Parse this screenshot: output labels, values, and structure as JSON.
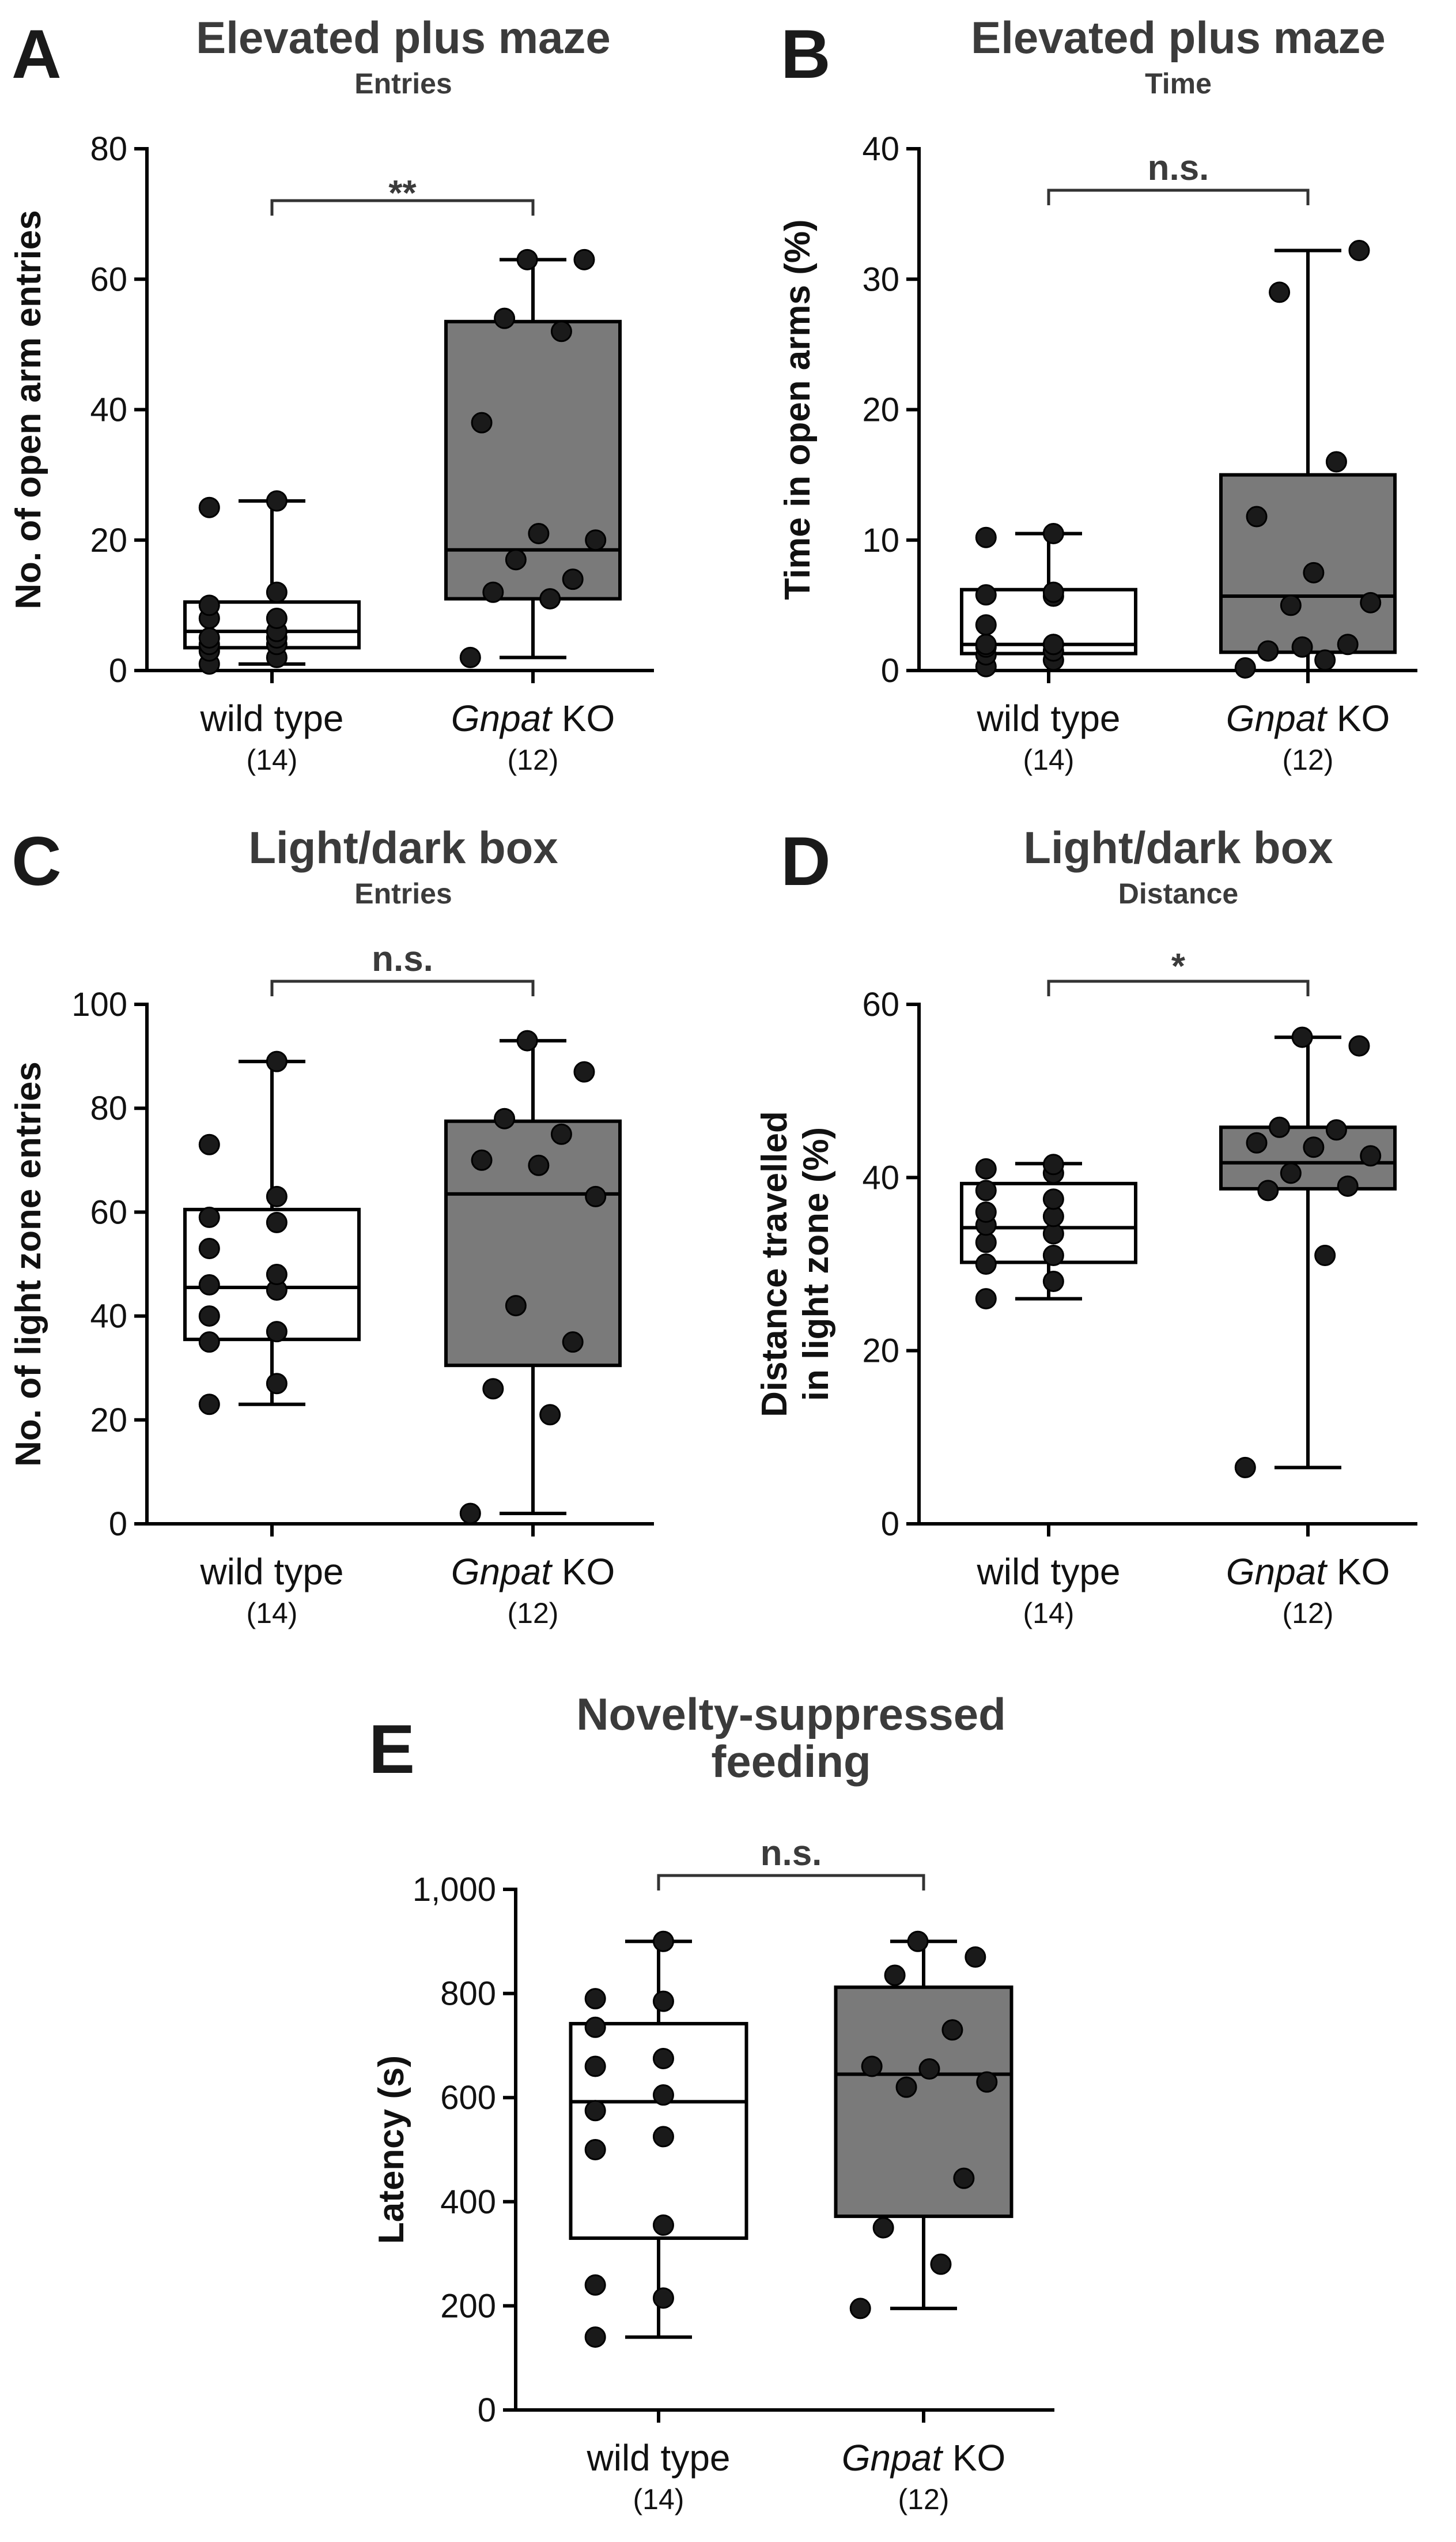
{
  "colors": {
    "wild_type_box": "#ffffff",
    "ko_box": "#7a7a7a",
    "ink": "#000000",
    "title": "#3b3b3b"
  },
  "chart_data": [
    {
      "panel": "A",
      "type": "box",
      "title": "Elevated plus maze",
      "subtitle": "Entries",
      "xlabel": "",
      "ylabel": "No. of open arm entries",
      "ylim": [
        0,
        80
      ],
      "yticks": [
        "0",
        "20",
        "40",
        "60",
        "80"
      ],
      "ytick_values": [
        0,
        20,
        40,
        60,
        80
      ],
      "significance": "**",
      "groups": [
        {
          "label": "wild type",
          "italic_part": "",
          "n_label": "(14)",
          "fill": "#ffffff",
          "min": 1,
          "q1": 3.5,
          "median": 6,
          "q3": 10.5,
          "max": 26,
          "points": [
            1,
            2,
            3,
            4,
            4,
            5,
            5,
            6,
            8,
            8,
            10,
            12,
            25,
            26
          ]
        },
        {
          "label": " KO",
          "italic_part": "Gnpat",
          "n_label": "(12)",
          "fill": "#7a7a7a",
          "min": 2,
          "q1": 11,
          "median": 18.5,
          "q3": 53.5,
          "max": 63,
          "points": [
            2,
            11,
            12,
            14,
            17,
            20,
            21,
            38,
            52,
            54,
            63,
            63
          ]
        }
      ]
    },
    {
      "panel": "B",
      "type": "box",
      "title": "Elevated plus maze",
      "subtitle": "Time",
      "xlabel": "",
      "ylabel": "Time in open arms (%)",
      "ylim": [
        0,
        40
      ],
      "yticks": [
        "0",
        "10",
        "20",
        "30",
        "40"
      ],
      "ytick_values": [
        0,
        10,
        20,
        30,
        40
      ],
      "significance": "n.s.",
      "groups": [
        {
          "label": "wild type",
          "italic_part": "",
          "n_label": "(14)",
          "fill": "#ffffff",
          "min": 0,
          "q1": 1.3,
          "median": 2,
          "q3": 6.2,
          "max": 10.5,
          "points": [
            0.3,
            0.8,
            1.2,
            1.5,
            1.8,
            2,
            2,
            2,
            3.5,
            5.7,
            5.8,
            6,
            10.2,
            10.5
          ]
        },
        {
          "label": " KO",
          "italic_part": "Gnpat",
          "n_label": "(12)",
          "fill": "#7a7a7a",
          "min": 0,
          "q1": 1.4,
          "median": 5.7,
          "q3": 15,
          "max": 32.2,
          "points": [
            0.2,
            0.8,
            1.5,
            2,
            5,
            5.2,
            7.5,
            11.8,
            16,
            29,
            32.2,
            1.8
          ]
        }
      ]
    },
    {
      "panel": "C",
      "type": "box",
      "title": "Light/dark box",
      "subtitle": "Entries",
      "xlabel": "",
      "ylabel": "No. of light zone entries",
      "ylim": [
        0,
        100
      ],
      "yticks": [
        "0",
        "20",
        "40",
        "60",
        "80",
        "100"
      ],
      "ytick_values": [
        0,
        20,
        40,
        60,
        80,
        100
      ],
      "significance": "n.s.",
      "groups": [
        {
          "label": "wild type",
          "italic_part": "",
          "n_label": "(14)",
          "fill": "#ffffff",
          "min": 23,
          "q1": 35.5,
          "median": 45.5,
          "q3": 60.5,
          "max": 89,
          "points": [
            23,
            27,
            35,
            37,
            40,
            45,
            46,
            48,
            53,
            58,
            59,
            63,
            73,
            89
          ]
        },
        {
          "label": " KO",
          "italic_part": "Gnpat",
          "n_label": "(12)",
          "fill": "#7a7a7a",
          "min": 2,
          "q1": 30.5,
          "median": 63.5,
          "q3": 77.5,
          "max": 93,
          "points": [
            2,
            21,
            26,
            35,
            42,
            63,
            69,
            70,
            75,
            78,
            87,
            93
          ]
        }
      ]
    },
    {
      "panel": "D",
      "type": "box",
      "title": "Light/dark box",
      "subtitle": "Distance",
      "xlabel": "",
      "ylabel": "Distance travelled in light zone (%)",
      "ylabel_lines": [
        "Distance travelled",
        "in light zone (%)"
      ],
      "ylim": [
        0,
        60
      ],
      "yticks": [
        "0",
        "20",
        "40",
        "60"
      ],
      "ytick_values": [
        0,
        20,
        40,
        60
      ],
      "significance": "*",
      "groups": [
        {
          "label": "wild type",
          "italic_part": "",
          "n_label": "(14)",
          "fill": "#ffffff",
          "min": 26,
          "q1": 30.2,
          "median": 34.2,
          "q3": 39.3,
          "max": 41.6,
          "points": [
            26,
            28,
            30,
            31,
            32.5,
            33.5,
            34.5,
            35.5,
            36,
            37.5,
            38.5,
            40.5,
            41,
            41.5
          ]
        },
        {
          "label": " KO",
          "italic_part": "Gnpat",
          "n_label": "(12)",
          "fill": "#7a7a7a",
          "min": 6.5,
          "q1": 38.7,
          "median": 41.7,
          "q3": 45.8,
          "max": 56.2,
          "points": [
            6.5,
            31,
            38.5,
            39,
            40.5,
            42.5,
            43.5,
            44,
            45.5,
            45.8,
            55.2,
            56.2
          ]
        }
      ]
    },
    {
      "panel": "E",
      "type": "box",
      "title": "Novelty-suppressed feeding",
      "title_lines": [
        "Novelty-suppressed",
        "feeding"
      ],
      "subtitle": "",
      "xlabel": "",
      "ylabel": "Latency (s)",
      "ylim": [
        0,
        1000
      ],
      "yticks": [
        "0",
        "200",
        "400",
        "600",
        "800",
        "1,000"
      ],
      "ytick_values": [
        0,
        200,
        400,
        600,
        800,
        1000
      ],
      "significance": "n.s.",
      "groups": [
        {
          "label": "wild type",
          "italic_part": "",
          "n_label": "(14)",
          "fill": "#ffffff",
          "min": 140,
          "q1": 330,
          "median": 592,
          "q3": 742,
          "max": 900,
          "points": [
            140,
            215,
            240,
            355,
            500,
            525,
            575,
            605,
            660,
            675,
            735,
            785,
            790,
            900
          ]
        },
        {
          "label": " KO",
          "italic_part": "Gnpat",
          "n_label": "(12)",
          "fill": "#7a7a7a",
          "min": 195,
          "q1": 372,
          "median": 645,
          "q3": 812,
          "max": 900,
          "points": [
            195,
            280,
            350,
            445,
            620,
            630,
            655,
            660,
            730,
            835,
            870,
            900
          ]
        }
      ]
    }
  ]
}
